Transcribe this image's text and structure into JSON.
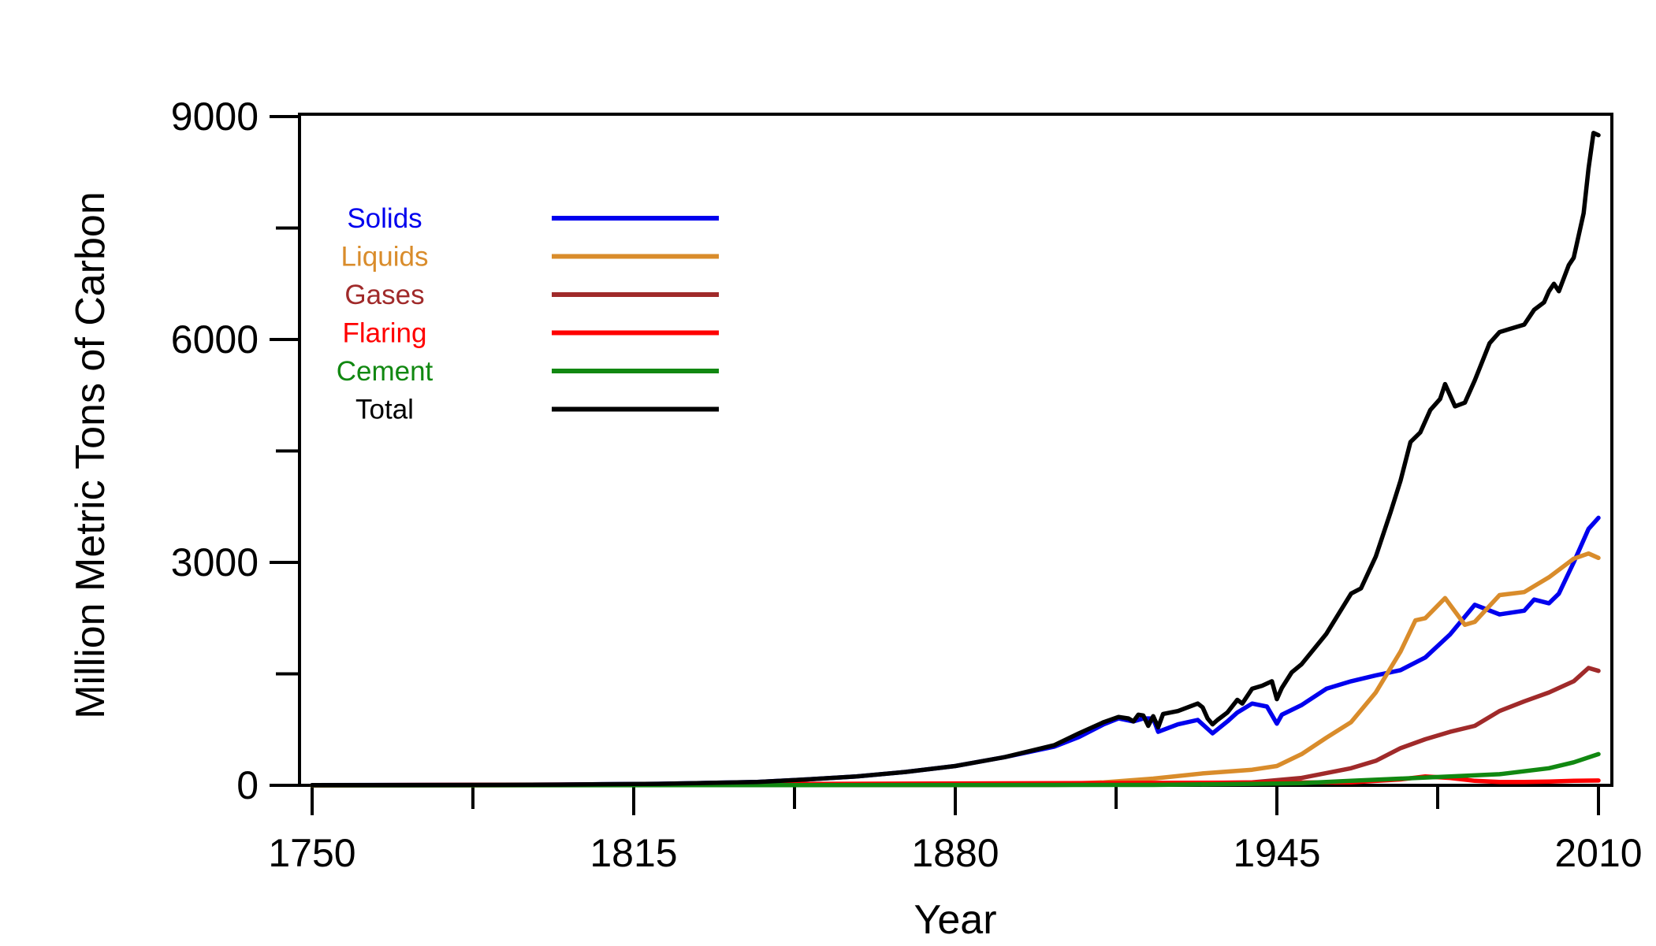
{
  "chart_data": {
    "type": "line",
    "title": "",
    "xlabel": "Year",
    "ylabel": "Million Metric Tons of Carbon",
    "xlim": [
      1750,
      2010
    ],
    "ylim": [
      0,
      9000
    ],
    "x_ticks": [
      1750,
      1815,
      1880,
      1945,
      2010
    ],
    "x_minor_ticks": [
      1782.5,
      1847.5,
      1912.5,
      1977.5
    ],
    "y_ticks": [
      0,
      3000,
      6000,
      9000
    ],
    "y_minor_ticks": [
      1500,
      4500,
      7500
    ],
    "x_tick_labels": [
      "1750",
      "1815",
      "1880",
      "1945",
      "2010"
    ],
    "y_tick_labels": [
      "0",
      "3000",
      "6000",
      "9000"
    ],
    "grid": false,
    "legend_position": "top-left",
    "series": [
      {
        "name": "Solids",
        "color": "#0000ee",
        "x": [
          1750,
          1780,
          1800,
          1820,
          1840,
          1850,
          1860,
          1870,
          1880,
          1890,
          1900,
          1905,
          1910,
          1913,
          1916,
          1918,
          1920,
          1921,
          1925,
          1929,
          1932,
          1935,
          1937,
          1940,
          1943,
          1945,
          1946,
          1950,
          1955,
          1960,
          1965,
          1970,
          1975,
          1980,
          1985,
          1990,
          1995,
          1997,
          2000,
          2002,
          2005,
          2008,
          2010
        ],
        "y": [
          3,
          5,
          10,
          20,
          45,
          80,
          120,
          180,
          260,
          380,
          520,
          650,
          820,
          900,
          860,
          900,
          900,
          720,
          820,
          880,
          700,
          860,
          980,
          1100,
          1060,
          830,
          950,
          1080,
          1300,
          1400,
          1480,
          1550,
          1720,
          2030,
          2430,
          2300,
          2350,
          2500,
          2450,
          2580,
          3000,
          3450,
          3600
        ]
      },
      {
        "name": "Liquids",
        "color": "#d98c2b",
        "x": [
          1750,
          1890,
          1900,
          1910,
          1920,
          1930,
          1940,
          1945,
          1950,
          1955,
          1960,
          1965,
          1970,
          1973,
          1975,
          1979,
          1983,
          1985,
          1990,
          1995,
          2000,
          2005,
          2008,
          2010
        ],
        "y": [
          0,
          5,
          15,
          40,
          90,
          160,
          210,
          260,
          420,
          640,
          850,
          1250,
          1800,
          2220,
          2250,
          2520,
          2160,
          2200,
          2560,
          2600,
          2800,
          3050,
          3120,
          3060
        ]
      },
      {
        "name": "Gases",
        "color": "#a02a2a",
        "x": [
          1750,
          1900,
          1920,
          1940,
          1950,
          1960,
          1965,
          1970,
          1975,
          1980,
          1985,
          1990,
          1995,
          2000,
          2005,
          2008,
          2010
        ],
        "y": [
          0,
          5,
          20,
          40,
          100,
          230,
          330,
          500,
          620,
          720,
          800,
          1000,
          1130,
          1250,
          1400,
          1580,
          1540
        ]
      },
      {
        "name": "Flaring",
        "color": "#ff0000",
        "x": [
          1750,
          1960,
          1970,
          1975,
          1980,
          1985,
          1990,
          1995,
          2000,
          2005,
          2010
        ],
        "y": [
          0,
          40,
          80,
          120,
          100,
          60,
          45,
          45,
          50,
          60,
          65
        ]
      },
      {
        "name": "Cement",
        "color": "#118811",
        "x": [
          1750,
          1920,
          1940,
          1950,
          1960,
          1970,
          1980,
          1990,
          2000,
          2005,
          2010
        ],
        "y": [
          0,
          5,
          20,
          30,
          60,
          90,
          120,
          150,
          230,
          310,
          420
        ]
      },
      {
        "name": "Total",
        "color": "#000000",
        "x": [
          1750,
          1780,
          1800,
          1820,
          1840,
          1850,
          1860,
          1870,
          1880,
          1890,
          1900,
          1905,
          1910,
          1913,
          1915,
          1916,
          1917,
          1918,
          1919,
          1920,
          1921,
          1922,
          1925,
          1929,
          1930,
          1931,
          1932,
          1933,
          1935,
          1937,
          1938,
          1940,
          1942,
          1944,
          1945,
          1946,
          1948,
          1950,
          1955,
          1960,
          1962,
          1965,
          1968,
          1970,
          1972,
          1974,
          1976,
          1978,
          1979,
          1981,
          1983,
          1985,
          1988,
          1990,
          1992,
          1995,
          1997,
          1999,
          2000,
          2001,
          2002,
          2004,
          2005,
          2007,
          2008,
          2009,
          2010
        ],
        "y": [
          3,
          5,
          10,
          20,
          45,
          80,
          120,
          180,
          260,
          380,
          540,
          700,
          850,
          920,
          900,
          860,
          950,
          940,
          800,
          930,
          780,
          960,
          1000,
          1100,
          1050,
          900,
          820,
          880,
          980,
          1150,
          1100,
          1300,
          1340,
          1400,
          1160,
          1310,
          1520,
          1630,
          2040,
          2580,
          2650,
          3080,
          3680,
          4100,
          4620,
          4750,
          5050,
          5200,
          5400,
          5100,
          5150,
          5450,
          5950,
          6100,
          6140,
          6200,
          6400,
          6500,
          6650,
          6750,
          6650,
          7000,
          7100,
          7700,
          8300,
          8780,
          8750
        ]
      }
    ]
  }
}
